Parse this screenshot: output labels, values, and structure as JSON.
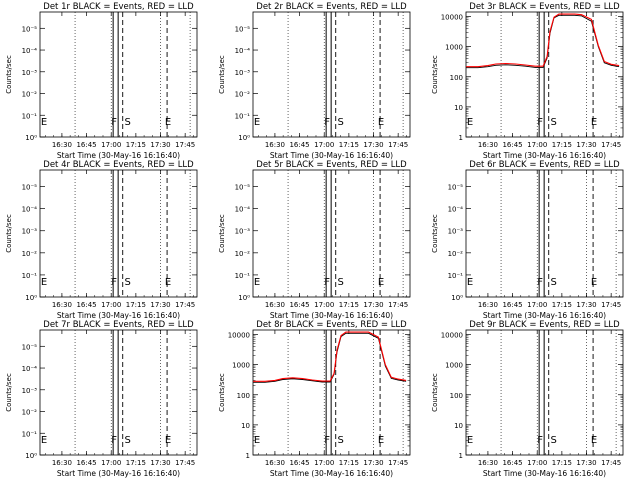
{
  "chart_data": [
    {
      "panel": "Det 1r",
      "type": "line",
      "title": "Det 1r BLACK = Events, RED = LLD",
      "xlabel": "Start Time (30-May-16 16:16:40)",
      "ylabel": "Counts/sec",
      "scale": "small",
      "y_ticks": [
        "10⁰",
        "10⁻¹",
        "10⁻²",
        "10⁻³",
        "10⁻⁴",
        "10⁻⁵"
      ],
      "x_ticks": [
        "16:30",
        "16:45",
        "17:00",
        "17:15",
        "17:30",
        "17:45"
      ],
      "markers": [
        {
          "label": "E",
          "at": "16:17"
        },
        {
          "label": "F",
          "at": "17:03"
        },
        {
          "label": "S",
          "at": "17:07"
        },
        {
          "label": "E",
          "at": "17:34"
        }
      ],
      "series": []
    },
    {
      "panel": "Det 2r",
      "type": "line",
      "title": "Det 2r BLACK = Events, RED = LLD",
      "xlabel": "Start Time (30-May-16 16:16:40)",
      "ylabel": "Counts/sec",
      "scale": "small",
      "y_ticks": [
        "10⁰",
        "10⁻¹",
        "10⁻²",
        "10⁻³",
        "10⁻⁴",
        "10⁻⁵"
      ],
      "x_ticks": [
        "16:30",
        "16:45",
        "17:00",
        "17:15",
        "17:30",
        "17:45"
      ],
      "markers": [
        {
          "label": "E",
          "at": "16:17"
        },
        {
          "label": "F",
          "at": "17:03"
        },
        {
          "label": "S",
          "at": "17:07"
        },
        {
          "label": "E",
          "at": "17:34"
        }
      ],
      "series": []
    },
    {
      "panel": "Det 3r",
      "type": "line",
      "title": "Det 3r BLACK = Events, RED = LLD",
      "xlabel": "Start Time (30-May-16 16:16:40)",
      "ylabel": "Counts/sec",
      "scale": "log",
      "y_ticks": [
        "1",
        "10",
        "100",
        "1000",
        "10000"
      ],
      "x_ticks": [
        "16:30",
        "16:45",
        "17:00",
        "17:15",
        "17:30",
        "17:45"
      ],
      "markers": [
        {
          "label": "E",
          "at": "16:17"
        },
        {
          "label": "F",
          "at": "17:03"
        },
        {
          "label": "S",
          "at": "17:07"
        },
        {
          "label": "E",
          "at": "17:34"
        }
      ],
      "series": [
        {
          "color": "#000000",
          "x": [
            16.28,
            16.4,
            16.5,
            16.58,
            16.68,
            16.78,
            16.88,
            16.98,
            17.06,
            17.1,
            17.13,
            17.17,
            17.22,
            17.3,
            17.38,
            17.45,
            17.55,
            17.62,
            17.68,
            17.75,
            17.83
          ],
          "y": [
            200,
            200,
            215,
            240,
            250,
            240,
            225,
            205,
            205,
            420,
            2800,
            9000,
            11000,
            11000,
            11000,
            10500,
            7000,
            1000,
            290,
            240,
            215
          ]
        },
        {
          "color": "#ff0000",
          "x": [
            16.28,
            16.4,
            16.5,
            16.58,
            16.68,
            16.78,
            16.88,
            16.98,
            17.06,
            17.1,
            17.13,
            17.17,
            17.22,
            17.3,
            17.38,
            17.45,
            17.55,
            17.62,
            17.68,
            17.75,
            17.83
          ],
          "y": [
            215,
            215,
            235,
            265,
            275,
            265,
            245,
            225,
            225,
            470,
            3200,
            9500,
            12000,
            12000,
            12000,
            11500,
            8000,
            1100,
            320,
            260,
            235
          ]
        }
      ]
    },
    {
      "panel": "Det 4r",
      "type": "line",
      "title": "Det 4r BLACK = Events, RED = LLD",
      "xlabel": "Start Time (30-May-16 16:16:40)",
      "ylabel": "Counts/sec",
      "scale": "small",
      "y_ticks": [
        "10⁰",
        "10⁻¹",
        "10⁻²",
        "10⁻³",
        "10⁻⁴",
        "10⁻⁵"
      ],
      "x_ticks": [
        "16:30",
        "16:45",
        "17:00",
        "17:15",
        "17:30",
        "17:45"
      ],
      "markers": [
        {
          "label": "E",
          "at": "16:17"
        },
        {
          "label": "F",
          "at": "17:03"
        },
        {
          "label": "S",
          "at": "17:07"
        },
        {
          "label": "E",
          "at": "17:34"
        }
      ],
      "series": []
    },
    {
      "panel": "Det 5r",
      "type": "line",
      "title": "Det 5r BLACK = Events, RED = LLD",
      "xlabel": "Start Time (30-May-16 16:16:40)",
      "ylabel": "Counts/sec",
      "scale": "small",
      "y_ticks": [
        "10⁰",
        "10⁻¹",
        "10⁻²",
        "10⁻³",
        "10⁻⁴",
        "10⁻⁵"
      ],
      "x_ticks": [
        "16:30",
        "16:45",
        "17:00",
        "17:15",
        "17:30",
        "17:45"
      ],
      "markers": [
        {
          "label": "E",
          "at": "16:17"
        },
        {
          "label": "F",
          "at": "17:03"
        },
        {
          "label": "S",
          "at": "17:07"
        },
        {
          "label": "E",
          "at": "17:34"
        }
      ],
      "series": []
    },
    {
      "panel": "Det 6r",
      "type": "line",
      "title": "Det 6r BLACK = Events, RED = LLD",
      "xlabel": "Start Time (30-May-16 16:16:40)",
      "ylabel": "Counts/sec",
      "scale": "small",
      "y_ticks": [
        "10⁰",
        "10⁻¹",
        "10⁻²",
        "10⁻³",
        "10⁻⁴",
        "10⁻⁵"
      ],
      "x_ticks": [
        "16:30",
        "16:45",
        "17:00",
        "17:15",
        "17:30",
        "17:45"
      ],
      "markers": [
        {
          "label": "E",
          "at": "16:17"
        },
        {
          "label": "F",
          "at": "17:03"
        },
        {
          "label": "S",
          "at": "17:07"
        },
        {
          "label": "E",
          "at": "17:34"
        }
      ],
      "series": []
    },
    {
      "panel": "Det 7r",
      "type": "line",
      "title": "Det 7r BLACK = Events, RED = LLD",
      "xlabel": "Start Time (30-May-16 16:16:40)",
      "ylabel": "Counts/sec",
      "scale": "small",
      "y_ticks": [
        "10⁰",
        "10⁻¹",
        "10⁻²",
        "10⁻³",
        "10⁻⁴",
        "10⁻⁵"
      ],
      "x_ticks": [
        "16:30",
        "16:45",
        "17:00",
        "17:15",
        "17:30",
        "17:45"
      ],
      "markers": [
        {
          "label": "E",
          "at": "16:17"
        },
        {
          "label": "F",
          "at": "17:03"
        },
        {
          "label": "S",
          "at": "17:07"
        },
        {
          "label": "E",
          "at": "17:34"
        }
      ],
      "series": []
    },
    {
      "panel": "Det 8r",
      "type": "line",
      "title": "Det 8r BLACK = Events, RED = LLD",
      "xlabel": "Start Time (30-May-16 16:16:40)",
      "ylabel": "Counts/sec",
      "scale": "log",
      "y_ticks": [
        "1",
        "10",
        "100",
        "1000",
        "10000"
      ],
      "x_ticks": [
        "16:30",
        "16:45",
        "17:00",
        "17:15",
        "17:30",
        "17:45"
      ],
      "markers": [
        {
          "label": "E",
          "at": "16:17"
        },
        {
          "label": "F",
          "at": "17:03"
        },
        {
          "label": "S",
          "at": "17:07"
        },
        {
          "label": "E",
          "at": "17:34"
        }
      ],
      "series": [
        {
          "color": "#000000",
          "x": [
            16.28,
            16.4,
            16.5,
            16.58,
            16.68,
            16.78,
            16.88,
            16.98,
            17.06,
            17.1,
            17.13,
            17.17,
            17.22,
            17.3,
            17.38,
            17.45,
            17.55,
            17.62,
            17.68,
            17.75,
            17.83
          ],
          "y": [
            260,
            260,
            280,
            320,
            340,
            320,
            290,
            265,
            265,
            480,
            2600,
            8500,
            11000,
            11000,
            11000,
            11000,
            7500,
            900,
            350,
            310,
            280
          ]
        },
        {
          "color": "#ff0000",
          "x": [
            16.28,
            16.4,
            16.5,
            16.58,
            16.68,
            16.78,
            16.88,
            16.98,
            17.06,
            17.1,
            17.13,
            17.17,
            17.22,
            17.3,
            17.38,
            17.45,
            17.55,
            17.62,
            17.68,
            17.75,
            17.83
          ],
          "y": [
            280,
            280,
            300,
            345,
            365,
            345,
            310,
            285,
            285,
            520,
            3000,
            9200,
            12000,
            12000,
            12000,
            12000,
            8200,
            1000,
            380,
            330,
            300
          ]
        }
      ]
    },
    {
      "panel": "Det 9r",
      "type": "line",
      "title": "Det 9r BLACK = Events, RED = LLD",
      "xlabel": "Start Time (30-May-16 16:16:40)",
      "ylabel": "Counts/sec",
      "scale": "log",
      "y_ticks": [
        "1",
        "10",
        "100",
        "1000",
        "10000"
      ],
      "x_ticks": [
        "16:30",
        "16:45",
        "17:00",
        "17:15",
        "17:30",
        "17:45"
      ],
      "markers": [
        {
          "label": "E",
          "at": "16:17"
        },
        {
          "label": "F",
          "at": "17:03"
        },
        {
          "label": "S",
          "at": "17:07"
        },
        {
          "label": "E",
          "at": "17:34"
        }
      ],
      "series": []
    }
  ]
}
